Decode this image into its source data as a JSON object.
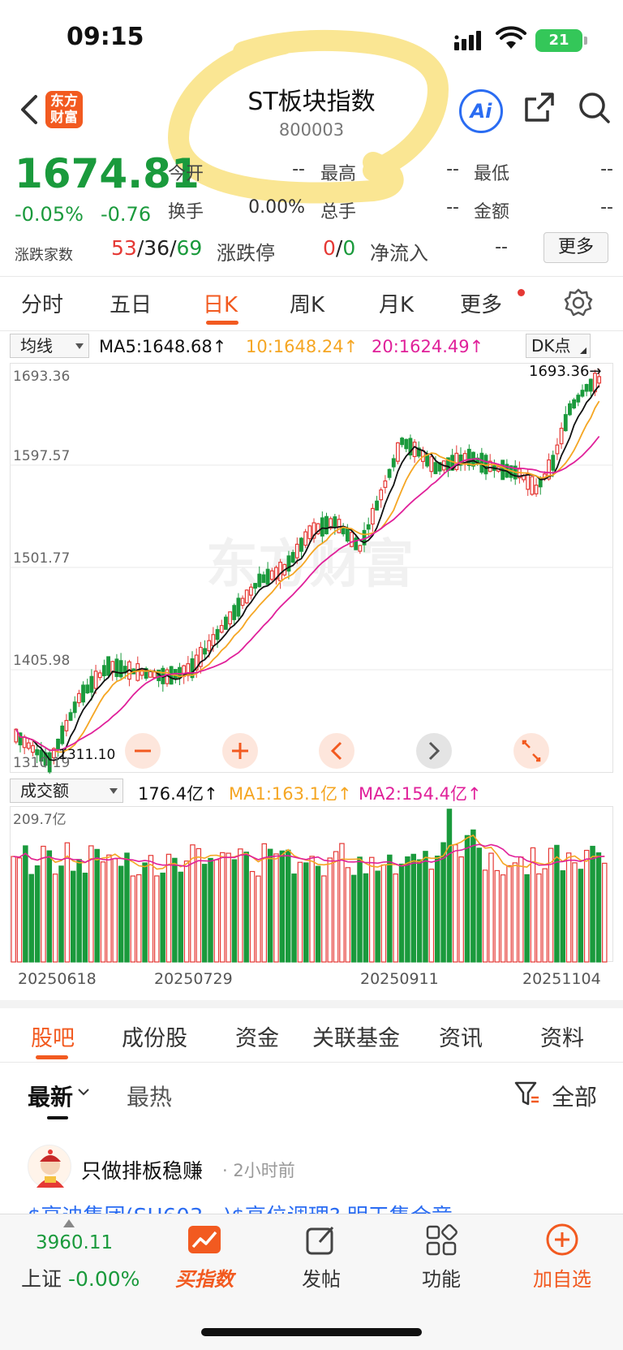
{
  "status_bar": {
    "time": "09:15",
    "battery": "21"
  },
  "header": {
    "logo_line1": "东方",
    "logo_line2": "财富",
    "title": "ST板块指数",
    "code": "800003",
    "ai_label": "Ai"
  },
  "quote": {
    "price": "1674.81",
    "change_pct": "-0.05%",
    "change_val": "-0.76",
    "fields": [
      {
        "label": "今开",
        "value": "--"
      },
      {
        "label": "最高",
        "value": "--"
      },
      {
        "label": "最低",
        "value": "--"
      },
      {
        "label": "换手",
        "value": "0.00%"
      },
      {
        "label": "总手",
        "value": "--"
      },
      {
        "label": "金额",
        "value": "--"
      }
    ],
    "adv_label": "涨跌家数",
    "adv_up": "53",
    "adv_flat": "36",
    "adv_down": "69",
    "limit_label": "涨跌停",
    "limit_up": "0",
    "limit_down": "0",
    "inflow_label": "净流入",
    "inflow_value": "--",
    "more_label": "更多"
  },
  "chart_tabs": [
    "分时",
    "五日",
    "日K",
    "周K",
    "月K",
    "更多"
  ],
  "ma_bar": {
    "dropdown": "均线",
    "ma5": "MA5:1648.68↑",
    "ma10": "10:1648.24↑",
    "ma20": "20:1624.49↑",
    "dk_label": "DK点",
    "colors": {
      "ma5": "#111111",
      "ma10": "#f5a623",
      "ma20": "#e0209a"
    }
  },
  "vol_bar": {
    "dropdown": "成交额",
    "value": "176.4亿↑",
    "ma1": "MA1:163.1亿↑",
    "ma2": "MA2:154.4亿↑"
  },
  "chart_data": {
    "type": "candlestick",
    "y_ticks": [
      "1693.36",
      "1597.57",
      "1501.77",
      "1405.98",
      "1310.19"
    ],
    "ylim": [
      1310.19,
      1693.36
    ],
    "high_label": "1693.36→",
    "low_label": "1311.10",
    "volume_max_label": "209.7亿",
    "dates": [
      "20250618",
      "20250729",
      "20250911",
      "20251104"
    ],
    "watermark": "东方财富",
    "colors": {
      "up": "#e53935",
      "down": "#1a9a3c"
    }
  },
  "bottom_tabs": [
    "股吧",
    "成份股",
    "资金",
    "关联基金",
    "资讯",
    "资料"
  ],
  "sort": {
    "latest": "最新",
    "hot": "最热",
    "filter": "全部"
  },
  "post": {
    "author": "只做排板稳赚",
    "time": "· 2小时前",
    "snippet": "$亨迪集团(SH603...)$高位调理? 明天集合竞..."
  },
  "bottom_nav": {
    "index_value": "3960.11",
    "index_name": "上证",
    "index_change": "-0.00%",
    "items": [
      "买指数",
      "发帖",
      "功能",
      "加自选"
    ]
  }
}
